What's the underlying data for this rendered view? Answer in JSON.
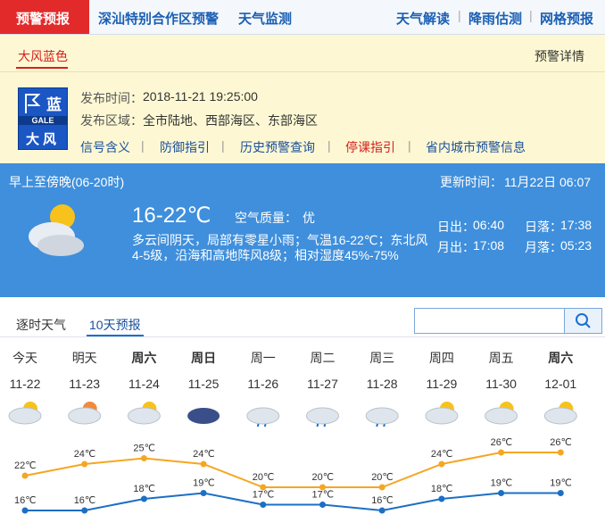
{
  "nav": {
    "active": "预警预报",
    "left_links": [
      "深汕特别合作区预警",
      "天气监测"
    ],
    "right_links": [
      "天气解读",
      "降雨估测",
      "网格预报"
    ]
  },
  "warning": {
    "tab": "大风蓝色",
    "detail": "预警详情",
    "icon": {
      "level": "蓝",
      "en": "GALE",
      "name": "大风"
    },
    "fields": [
      {
        "label": "发布时间：",
        "value": "2018-11-21 19:25:00"
      },
      {
        "label": "发布区域：",
        "value": "全市陆地、西部海区、东部海区"
      }
    ],
    "links": [
      "信号含义",
      "防御指引",
      "历史预警查询",
      "停课指引",
      "省内城市预警信息"
    ]
  },
  "today": {
    "period": "早上至傍晚(06-20时)",
    "updated_label": "更新时间：",
    "updated": "11月22日 06:07",
    "temp": "16-22℃",
    "aq_label": "空气质量：",
    "aq": "优",
    "description": [
      "多云间阴天，局部有零星小雨；气温16-22℃；东北风",
      "4-5级，沿海和高地阵风8级；相对湿度45%-75%"
    ],
    "sun": [
      {
        "label": "日出：",
        "value": "06:40"
      },
      {
        "label": "日落：",
        "value": "17:38"
      },
      {
        "label": "月出：",
        "value": "17:08"
      },
      {
        "label": "月落：",
        "value": "05:23"
      }
    ]
  },
  "tabs": [
    "逐时天气",
    "10天预报"
  ],
  "forecast": {
    "days": [
      "今天",
      "明天",
      "周六",
      "周日",
      "周一",
      "周二",
      "周三",
      "周四",
      "周五",
      "周六"
    ],
    "dates": [
      "11-22",
      "11-23",
      "11-24",
      "11-25",
      "11-26",
      "11-27",
      "11-28",
      "11-29",
      "11-30",
      "12-01"
    ],
    "high": {
      "values": [
        22,
        24,
        25,
        24,
        20,
        20,
        20,
        24,
        26,
        26
      ],
      "value_labels": [
        "22℃",
        "24℃",
        "25℃",
        "24℃",
        "20℃",
        "20℃",
        "20℃",
        "24℃",
        "26℃",
        "26℃"
      ],
      "color": "#f5a623"
    },
    "low": {
      "values": [
        16,
        16,
        18,
        19,
        17,
        17,
        16,
        18,
        19,
        19
      ],
      "value_labels": [
        "16℃",
        "16℃",
        "18℃",
        "19℃",
        "17℃",
        "17℃",
        "16℃",
        "18℃",
        "19℃",
        "19℃"
      ],
      "color": "#1c6fc4"
    }
  }
}
